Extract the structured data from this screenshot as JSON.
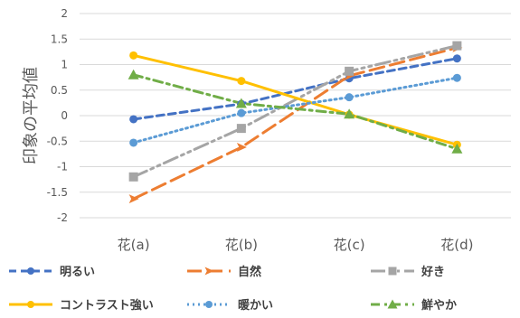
{
  "chart_data": {
    "type": "line",
    "title": "",
    "xlabel": "",
    "ylabel": "印象の平均値",
    "categories": [
      "花(a)",
      "花(b)",
      "花(c)",
      "花(d)"
    ],
    "ylim": [
      -2,
      2
    ],
    "yticks": [
      "2",
      "1.5",
      "1",
      "0.5",
      "0",
      "-0.5",
      "-1",
      "-1.5",
      "-2"
    ],
    "grid": true,
    "legend_position": "bottom",
    "series": [
      {
        "name": "明るい",
        "values": [
          -0.07,
          0.23,
          0.73,
          1.12
        ],
        "color": "#4472C4",
        "dash": "8,5",
        "marker": "circle"
      },
      {
        "name": "自然",
        "values": [
          -1.63,
          -0.62,
          0.78,
          1.33
        ],
        "color": "#ED7D31",
        "dash": "16,7",
        "marker": "arrow"
      },
      {
        "name": "好き",
        "values": [
          -1.2,
          -0.25,
          0.87,
          1.37
        ],
        "color": "#A5A5A5",
        "dash": "16,5,3,5,3,5",
        "marker": "square"
      },
      {
        "name": "コントラスト強い",
        "values": [
          1.18,
          0.68,
          0.02,
          -0.57
        ],
        "color": "#FFC000",
        "dash": "",
        "marker": "circle"
      },
      {
        "name": "暖かい",
        "values": [
          -0.53,
          0.05,
          0.36,
          0.74
        ],
        "color": "#5B9BD5",
        "dash": "2,4",
        "marker": "circle"
      },
      {
        "name": "鮮やか",
        "values": [
          0.8,
          0.24,
          0.03,
          -0.65
        ],
        "color": "#70AD47",
        "dash": "10,5,3,5",
        "marker": "triangle"
      }
    ]
  }
}
